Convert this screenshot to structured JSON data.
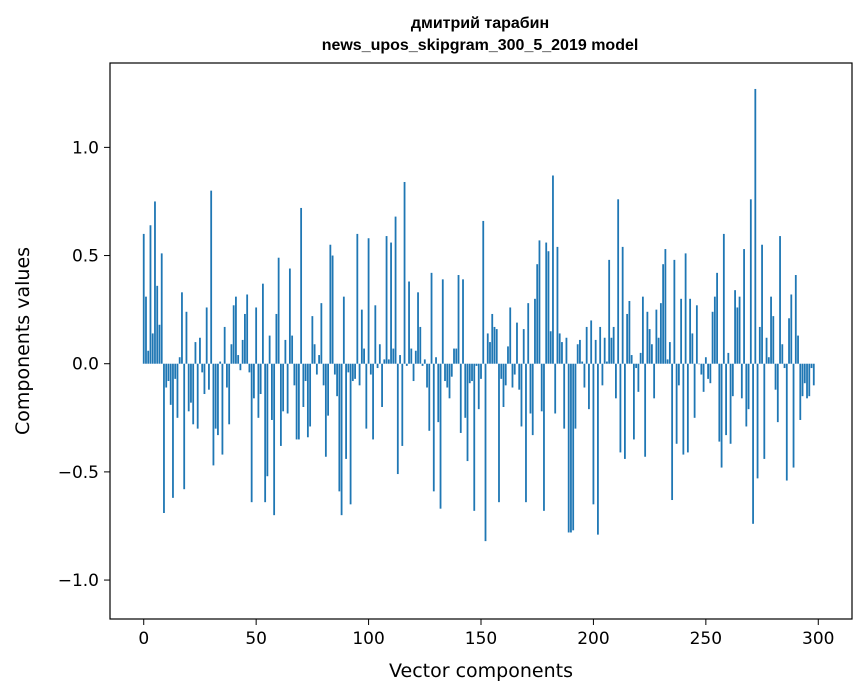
{
  "chart_data": {
    "type": "bar",
    "title": [
      "дмитрий тарабин",
      "news_upos_skipgram_300_5_2019 model"
    ],
    "xlabel": "Vector components",
    "ylabel": "Components values",
    "xlim": [
      -15,
      315
    ],
    "ylim": [
      -1.18,
      1.39
    ],
    "xticks": [
      0,
      50,
      100,
      150,
      200,
      250,
      300
    ],
    "xtick_labels": [
      "0",
      "50",
      "100",
      "150",
      "200",
      "250",
      "300"
    ],
    "yticks": [
      -1.0,
      -0.5,
      0.0,
      0.5,
      1.0
    ],
    "ytick_labels": [
      "−1.0",
      "−0.5",
      "0.0",
      "0.5",
      "1.0"
    ],
    "grid": false,
    "bar_color": "#1f77b4",
    "values": [
      0.6,
      0.31,
      0.06,
      0.64,
      0.14,
      0.75,
      0.36,
      0.18,
      0.51,
      -0.69,
      -0.11,
      -0.08,
      -0.19,
      -0.62,
      -0.07,
      -0.25,
      0.03,
      0.33,
      -0.58,
      0.24,
      -0.22,
      -0.18,
      -0.28,
      0.1,
      -0.3,
      0.12,
      -0.04,
      -0.14,
      0.26,
      -0.12,
      0.8,
      -0.47,
      -0.3,
      -0.33,
      0.01,
      -0.42,
      0.17,
      -0.11,
      -0.28,
      0.09,
      0.27,
      0.31,
      0.04,
      -0.03,
      0.11,
      0.23,
      0.32,
      -0.04,
      -0.64,
      -0.16,
      0.26,
      -0.25,
      -0.14,
      0.37,
      -0.64,
      -0.52,
      0.13,
      -0.26,
      -0.7,
      0.23,
      0.49,
      -0.38,
      -0.22,
      0.11,
      -0.23,
      0.44,
      0.13,
      -0.1,
      -0.35,
      -0.35,
      0.72,
      -0.2,
      -0.08,
      -0.34,
      -0.29,
      0.22,
      0.09,
      -0.05,
      0.04,
      0.28,
      -0.1,
      -0.43,
      -0.24,
      0.55,
      0.5,
      -0.05,
      -0.15,
      -0.59,
      -0.7,
      0.31,
      -0.44,
      -0.04,
      -0.65,
      -0.08,
      -0.07,
      0.6,
      -0.1,
      0.25,
      0.07,
      -0.3,
      0.58,
      -0.05,
      -0.35,
      0.27,
      -0.02,
      0.09,
      -0.2,
      0.02,
      0.59,
      0.02,
      0.56,
      0.07,
      0.68,
      -0.51,
      0.04,
      -0.38,
      0.84,
      -0.01,
      0.38,
      0.07,
      -0.08,
      0.06,
      0.33,
      0.17,
      -0.01,
      0.02,
      -0.11,
      -0.31,
      0.42,
      -0.59,
      0.03,
      -0.27,
      -0.67,
      0.39,
      -0.08,
      -0.11,
      -0.16,
      -0.06,
      0.07,
      0.07,
      0.41,
      -0.32,
      0.39,
      -0.25,
      -0.45,
      -0.09,
      -0.08,
      -0.68,
      -0.01,
      -0.21,
      -0.07,
      0.66,
      -0.82,
      0.14,
      0.1,
      0.23,
      0.17,
      0.16,
      -0.64,
      -0.07,
      -0.2,
      -0.1,
      0.08,
      0.26,
      -0.11,
      -0.05,
      0.19,
      -0.12,
      -0.29,
      0.16,
      -0.64,
      0.28,
      -0.23,
      -0.33,
      0.3,
      0.46,
      0.57,
      -0.22,
      -0.68,
      0.56,
      0.52,
      0.15,
      0.87,
      -0.23,
      0.54,
      0.14,
      0.1,
      -0.3,
      0.12,
      -0.78,
      -0.78,
      -0.77,
      -0.3,
      0.09,
      0.11,
      0.01,
      -0.11,
      0.17,
      -0.21,
      0.2,
      -0.65,
      0.11,
      -0.79,
      0.17,
      -0.1,
      0.12,
      0.01,
      0.48,
      0.12,
      0.17,
      -0.16,
      0.76,
      -0.41,
      0.54,
      -0.44,
      0.23,
      0.29,
      0.04,
      -0.35,
      -0.02,
      -0.13,
      0.05,
      0.31,
      -0.43,
      0.24,
      0.16,
      0.09,
      -0.16,
      0.25,
      0.12,
      0.28,
      0.46,
      0.53,
      0.02,
      0.1,
      -0.63,
      0.48,
      -0.37,
      -0.1,
      0.3,
      -0.42,
      0.51,
      -0.41,
      0.3,
      0.14,
      -0.25,
      0.27,
      0.0,
      -0.05,
      -0.13,
      0.03,
      -0.07,
      -0.09,
      0.24,
      0.31,
      0.42,
      -0.36,
      -0.48,
      0.6,
      -0.33,
      0.05,
      -0.37,
      -0.15,
      0.34,
      0.26,
      0.31,
      -0.16,
      0.53,
      -0.29,
      -0.21,
      0.76,
      -0.74,
      1.27,
      -0.53,
      0.17,
      0.55,
      -0.44,
      0.12,
      0.03,
      0.31,
      0.22,
      -0.12,
      -0.27,
      0.59,
      0.09,
      -0.02,
      -0.54,
      0.21,
      0.32,
      -0.48,
      0.41,
      0.13,
      -0.26,
      -0.15,
      -0.09,
      -0.16,
      -0.15,
      -0.02,
      -0.1
    ]
  }
}
